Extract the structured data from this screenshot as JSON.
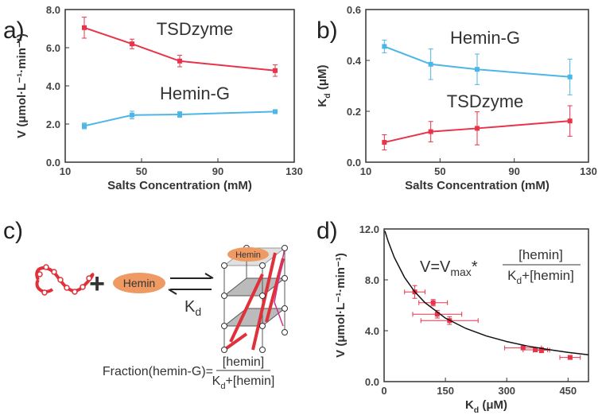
{
  "chart_data": [
    {
      "type": "line",
      "panel_label": "a)",
      "x": [
        20,
        45,
        70,
        120
      ],
      "series": [
        {
          "name": "TSDzyme",
          "color": "#e8334a",
          "values": [
            7.05,
            6.2,
            5.3,
            4.8
          ],
          "errors": [
            0.55,
            0.25,
            0.3,
            0.3
          ]
        },
        {
          "name": "Hemin-G",
          "color": "#4db6e6",
          "values": [
            1.9,
            2.47,
            2.5,
            2.65
          ],
          "errors": [
            0.15,
            0.2,
            0.15,
            0.1
          ]
        }
      ],
      "xlim": [
        10,
        130
      ],
      "xticks": [
        10,
        50,
        90,
        130
      ],
      "ylim": [
        0,
        8
      ],
      "yticks": [
        {
          "value": 0,
          "label": "0.0"
        },
        {
          "value": 2,
          "label": "2.0"
        },
        {
          "value": 4,
          "label": "4.0"
        },
        {
          "value": 6,
          "label": "6.0"
        },
        {
          "value": 8,
          "label": "8.0"
        }
      ],
      "x_label": [
        "Salts Concentration (mM)"
      ],
      "y_label": [
        "V (μmol·L⁻¹·min⁻¹)"
      ]
    },
    {
      "type": "line",
      "panel_label": "b)",
      "x": [
        20,
        45,
        70,
        120
      ],
      "series": [
        {
          "name": "Hemin-G",
          "color": "#4db6e6",
          "values": [
            0.455,
            0.385,
            0.365,
            0.335
          ],
          "errors": [
            0.025,
            0.06,
            0.06,
            0.07
          ]
        },
        {
          "name": "TSDzyme",
          "color": "#e8334a",
          "values": [
            0.078,
            0.12,
            0.133,
            0.162
          ],
          "errors": [
            0.03,
            0.04,
            0.065,
            0.06
          ]
        }
      ],
      "xlim": [
        10,
        130
      ],
      "xticks": [
        10,
        50,
        90,
        130
      ],
      "ylim": [
        0,
        0.6
      ],
      "yticks": [
        {
          "value": 0,
          "label": "0.0"
        },
        {
          "value": 0.2,
          "label": "0.2"
        },
        {
          "value": 0.4,
          "label": "0.4"
        },
        {
          "value": 0.6,
          "label": "0.6"
        }
      ],
      "x_label": [
        "Salts Concentration (mM)"
      ],
      "y_label": [
        "K",
        "d",
        " (μM)"
      ]
    },
    {
      "type": "scatter",
      "panel_label": "d)",
      "series": [
        {
          "color": "#e8334a",
          "x": [
            75,
            120,
            130,
            160,
            340,
            370,
            385,
            455
          ],
          "xerr": [
            25,
            35,
            60,
            70,
            45,
            30,
            20,
            25
          ],
          "values": [
            7.05,
            6.2,
            5.3,
            4.8,
            2.65,
            2.5,
            2.47,
            1.9
          ],
          "errors": [
            0.5,
            0.25,
            0.3,
            0.3,
            0.1,
            0.15,
            0.2,
            0.15
          ]
        },
        {
          "type": "line",
          "color": "#111111",
          "x": [
            2,
            10,
            25,
            50,
            75,
            100,
            150,
            200,
            250,
            300,
            350,
            400,
            450,
            500
          ],
          "values": [
            11.84,
            11.02,
            9.76,
            8.19,
            7.06,
            6.21,
            4.99,
            4.18,
            3.59,
            3.15,
            2.8,
            2.53,
            2.3,
            2.11
          ]
        }
      ],
      "xlim": [
        0,
        500
      ],
      "xticks": [
        0,
        150,
        300,
        450
      ],
      "ylim": [
        0,
        12
      ],
      "yticks": [
        {
          "value": 0,
          "label": "0.0"
        },
        {
          "value": 4,
          "label": "4.0"
        },
        {
          "value": 8,
          "label": "8.0"
        },
        {
          "value": 12,
          "label": "12.0"
        }
      ],
      "x_label": [
        "K",
        "d",
        " (μM)"
      ],
      "y_label": [
        "V (μmol·L⁻¹·min⁻¹)"
      ],
      "formula": {
        "lhs": [
          "V=V",
          "max",
          "*"
        ],
        "numerator": [
          "[hemin]"
        ],
        "denominator": [
          "K",
          "d",
          "+[hemin]"
        ]
      }
    }
  ],
  "diagram": {
    "panel_label": "c)",
    "plus": "+",
    "hemin_labels": [
      "Hemin",
      "Hemin"
    ],
    "constant": [
      "K",
      "d"
    ],
    "fraction": {
      "lhs": [
        "Fraction(hemin-G)="
      ],
      "numerator": [
        "[hemin]"
      ],
      "denominator": [
        "K",
        "d",
        "+[hemin]"
      ]
    }
  }
}
